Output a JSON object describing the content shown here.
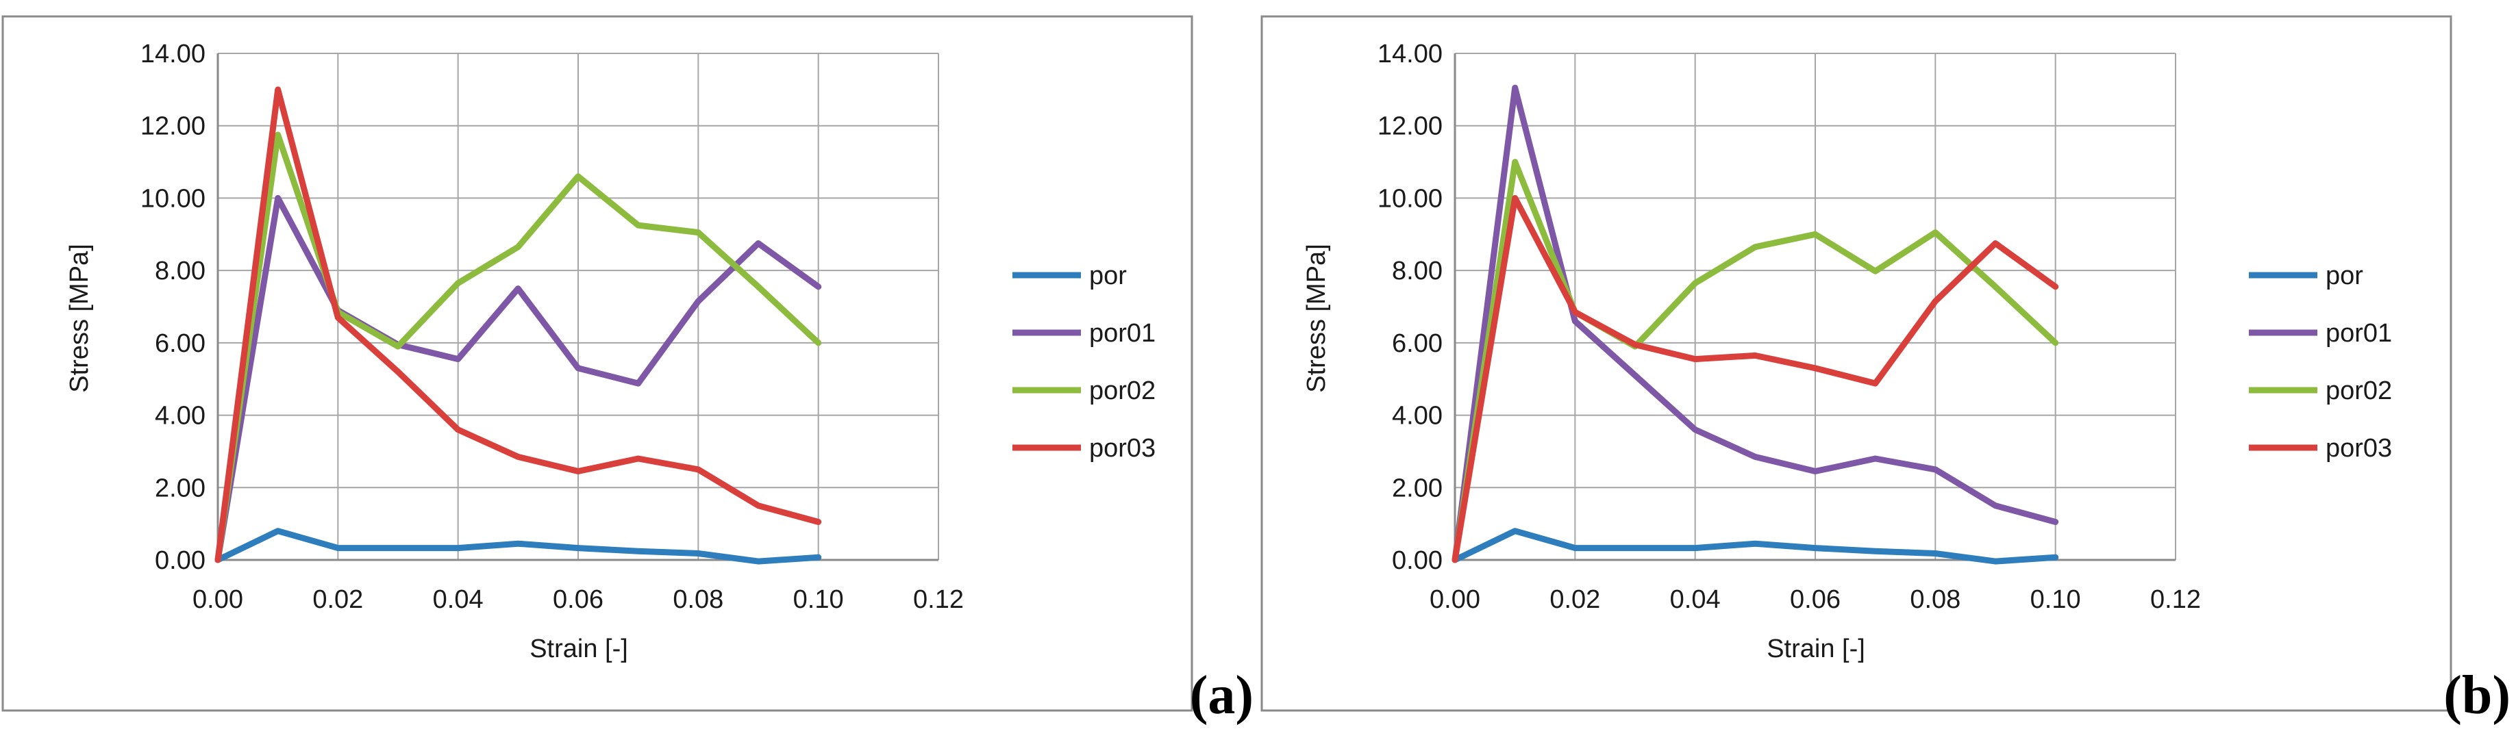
{
  "chart_data": [
    {
      "type": "line",
      "panel_label": "(a)",
      "xlabel": "Strain [-]",
      "ylabel": "Stress [MPa]",
      "xlim": [
        0,
        0.12
      ],
      "ylim": [
        0,
        14
      ],
      "x_ticks": [
        "0.00",
        "0.02",
        "0.04",
        "0.06",
        "0.08",
        "0.10",
        "0.12"
      ],
      "y_ticks": [
        "0.00",
        "2.00",
        "4.00",
        "6.00",
        "8.00",
        "10.00",
        "12.00",
        "14.00"
      ],
      "grid": true,
      "legend_position": "right",
      "x": [
        0,
        0.01,
        0.02,
        0.03,
        0.04,
        0.05,
        0.06,
        0.07,
        0.08,
        0.09,
        0.1
      ],
      "series": [
        {
          "name": "por",
          "color": "#2e7ebd",
          "values": [
            0.0,
            0.8,
            0.33,
            0.33,
            0.33,
            0.45,
            0.33,
            0.24,
            0.18,
            -0.04,
            0.07
          ]
        },
        {
          "name": "por01",
          "color": "#7e57a6",
          "values": [
            0.0,
            10.0,
            6.9,
            5.95,
            5.55,
            7.5,
            5.3,
            4.88,
            7.15,
            8.75,
            7.55
          ]
        },
        {
          "name": "por02",
          "color": "#8cbb3e",
          "values": [
            0.0,
            11.75,
            6.85,
            5.9,
            7.65,
            8.65,
            10.6,
            9.25,
            9.05,
            7.55,
            6.0
          ]
        },
        {
          "name": "por03",
          "color": "#d9403c",
          "values": [
            0.0,
            13.0,
            6.7,
            5.2,
            3.6,
            2.85,
            2.45,
            2.8,
            2.5,
            1.5,
            1.05
          ]
        }
      ]
    },
    {
      "type": "line",
      "panel_label": "(b)",
      "xlabel": "Strain [-]",
      "ylabel": "Stress [MPa]",
      "xlim": [
        0,
        0.12
      ],
      "ylim": [
        0,
        14
      ],
      "x_ticks": [
        "0.00",
        "0.02",
        "0.04",
        "0.06",
        "0.08",
        "0.10",
        "0.12"
      ],
      "y_ticks": [
        "0.00",
        "2.00",
        "4.00",
        "6.00",
        "8.00",
        "10.00",
        "12.00",
        "14.00"
      ],
      "grid": true,
      "legend_position": "right",
      "x": [
        0,
        0.01,
        0.02,
        0.03,
        0.04,
        0.05,
        0.06,
        0.07,
        0.08,
        0.09,
        0.1
      ],
      "series": [
        {
          "name": "por",
          "color": "#2e7ebd",
          "values": [
            0.0,
            0.8,
            0.33,
            0.33,
            0.33,
            0.45,
            0.33,
            0.24,
            0.18,
            -0.04,
            0.07
          ]
        },
        {
          "name": "por01",
          "color": "#7e57a6",
          "values": [
            0.0,
            13.05,
            6.6,
            5.1,
            3.6,
            2.85,
            2.45,
            2.8,
            2.5,
            1.5,
            1.05
          ]
        },
        {
          "name": "por02",
          "color": "#8cbb3e",
          "values": [
            0.0,
            11.0,
            6.85,
            5.9,
            7.65,
            8.65,
            9.0,
            7.98,
            9.05,
            7.55,
            6.0
          ]
        },
        {
          "name": "por03",
          "color": "#d9403c",
          "values": [
            0.0,
            10.0,
            6.85,
            5.95,
            5.55,
            5.65,
            5.3,
            4.88,
            7.15,
            8.75,
            7.55
          ]
        }
      ]
    }
  ]
}
